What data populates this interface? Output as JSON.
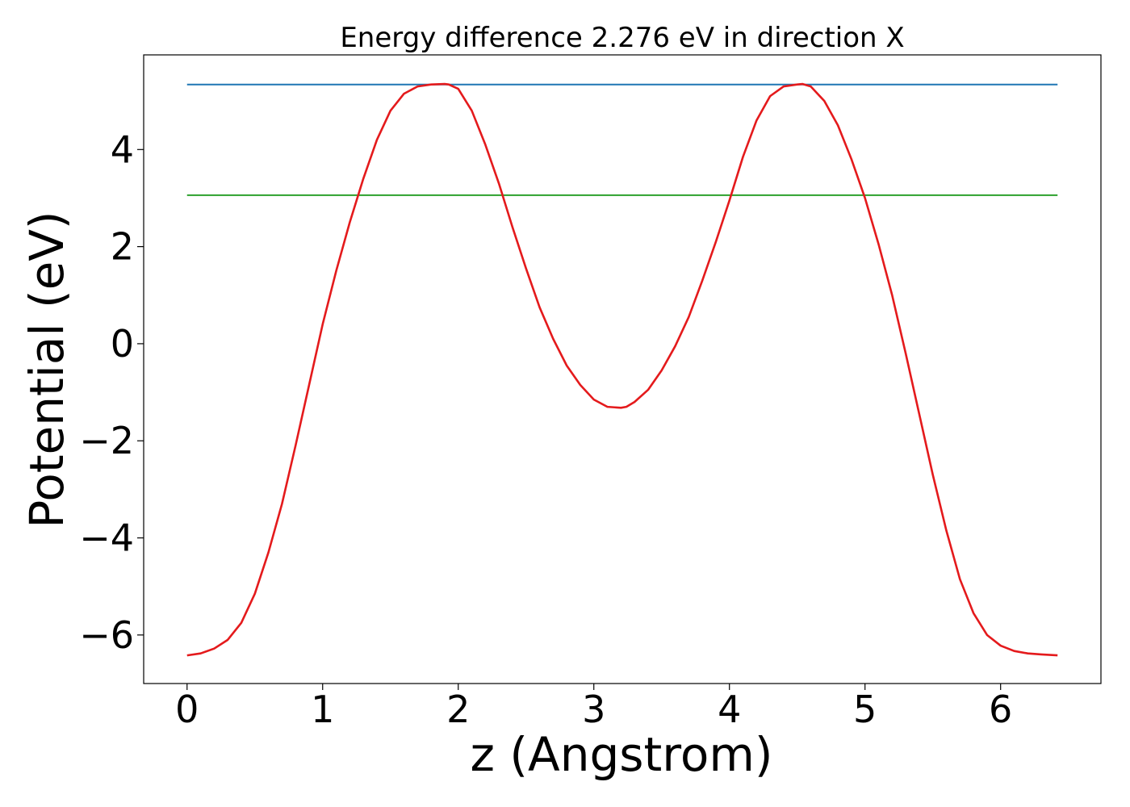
{
  "chart_data": {
    "type": "line",
    "title": "Energy difference 2.276 eV in direction X",
    "xlabel": "z (Angstrom)",
    "ylabel": "Potential (eV)",
    "xlim": [
      -0.32,
      6.74
    ],
    "ylim": [
      -7.0,
      5.95
    ],
    "x_ticks": [
      0,
      1,
      2,
      3,
      4,
      5,
      6
    ],
    "x_tick_labels": [
      "0",
      "1",
      "2",
      "3",
      "4",
      "5",
      "6"
    ],
    "y_ticks": [
      -6,
      -4,
      -2,
      0,
      2,
      4
    ],
    "y_tick_labels": [
      "−6",
      "−4",
      "−2",
      "0",
      "2",
      "4"
    ],
    "grid": false,
    "legend": "none",
    "series": [
      {
        "color": "#1f77b4",
        "x": [
          0,
          6.42
        ],
        "y": [
          5.34,
          5.34
        ]
      },
      {
        "color": "#2ca02c",
        "x": [
          0,
          6.42
        ],
        "y": [
          3.06,
          3.06
        ]
      },
      {
        "color": "#e41a1c",
        "x": [
          0,
          0.1,
          0.2,
          0.3,
          0.4,
          0.5,
          0.6,
          0.7,
          0.8,
          0.9,
          1.0,
          1.1,
          1.2,
          1.3,
          1.4,
          1.5,
          1.6,
          1.7,
          1.8,
          1.9,
          1.93,
          2.0,
          2.1,
          2.2,
          2.3,
          2.4,
          2.5,
          2.6,
          2.7,
          2.8,
          2.9,
          3.0,
          3.1,
          3.2,
          3.24,
          3.3,
          3.4,
          3.5,
          3.6,
          3.7,
          3.8,
          3.9,
          4.0,
          4.1,
          4.2,
          4.3,
          4.4,
          4.5,
          4.54,
          4.6,
          4.7,
          4.8,
          4.9,
          5.0,
          5.1,
          5.2,
          5.3,
          5.4,
          5.5,
          5.6,
          5.7,
          5.8,
          5.9,
          6.0,
          6.1,
          6.2,
          6.3,
          6.42
        ],
        "y": [
          -6.42,
          -6.38,
          -6.28,
          -6.1,
          -5.75,
          -5.15,
          -4.3,
          -3.3,
          -2.1,
          -0.85,
          0.4,
          1.5,
          2.5,
          3.4,
          4.2,
          4.8,
          5.15,
          5.3,
          5.34,
          5.35,
          5.34,
          5.25,
          4.8,
          4.1,
          3.3,
          2.4,
          1.55,
          0.75,
          0.1,
          -0.45,
          -0.85,
          -1.15,
          -1.3,
          -1.32,
          -1.3,
          -1.2,
          -0.95,
          -0.55,
          -0.05,
          0.55,
          1.3,
          2.1,
          2.95,
          3.85,
          4.6,
          5.1,
          5.3,
          5.34,
          5.35,
          5.3,
          5.0,
          4.5,
          3.8,
          3.0,
          2.05,
          1.0,
          -0.2,
          -1.45,
          -2.7,
          -3.85,
          -4.85,
          -5.55,
          -6.0,
          -6.22,
          -6.33,
          -6.38,
          -6.4,
          -6.42
        ]
      }
    ]
  }
}
